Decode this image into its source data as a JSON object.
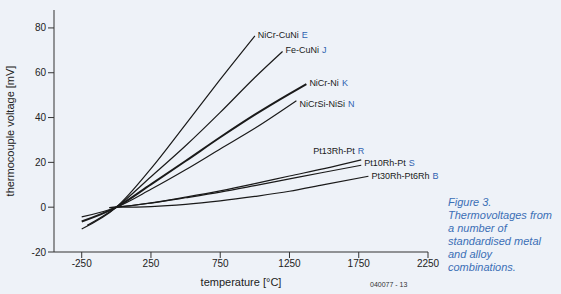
{
  "chart_data": {
    "type": "line",
    "caption": "Figure 3. Thermovoltages from a number of standardised metal and alloy combinations.",
    "figure_id": "040077 - 13",
    "x_label": "temperature [°C]",
    "y_label": "thermocouple voltage [mV]",
    "xlim": [
      -450,
      2250
    ],
    "xticks": [
      -250,
      250,
      750,
      1250,
      1750,
      2250
    ],
    "ylim": [
      -20,
      88
    ],
    "yticks": [
      -20,
      0,
      20,
      40,
      60,
      80
    ],
    "grid": false,
    "series": [
      {
        "name": "NiCr-CuNi E",
        "color": "#1a1a1a",
        "x": [
          -250,
          0,
          250,
          500,
          750,
          1000
        ],
        "values": [
          -9.7,
          0,
          17.2,
          37,
          57,
          76.4
        ]
      },
      {
        "name": "Fe-CuNi J",
        "color": "#1a1a1a",
        "x": [
          -210,
          0,
          250,
          500,
          750,
          1000,
          1200
        ],
        "values": [
          -8.1,
          0,
          13.6,
          27.4,
          42.3,
          57.9,
          69.5
        ]
      },
      {
        "name": "NiCr-Ni K",
        "color": "#1a1a1a",
        "x": [
          -250,
          0,
          250,
          500,
          750,
          1000,
          1250,
          1372
        ],
        "values": [
          -6.4,
          0,
          10.2,
          20.6,
          31.2,
          41.3,
          50.6,
          54.9
        ]
      },
      {
        "name": "NiCrSi-NiSi N",
        "color": "#1a1a1a",
        "x": [
          -250,
          0,
          250,
          500,
          750,
          1000,
          1300
        ],
        "values": [
          -4.3,
          0,
          8.0,
          16.7,
          26.0,
          35.2,
          47.5
        ]
      },
      {
        "name": "Pt13Rh-Pt R",
        "color": "#1a1a1a",
        "x": [
          -50,
          0,
          250,
          500,
          750,
          1000,
          1250,
          1500,
          1768
        ],
        "values": [
          -0.23,
          0,
          1.9,
          4.5,
          7.3,
          10.5,
          13.9,
          17.2,
          21.1
        ]
      },
      {
        "name": "Pt10Rh-Pt S",
        "color": "#1a1a1a",
        "x": [
          -50,
          0,
          250,
          500,
          750,
          1000,
          1250,
          1500,
          1768
        ],
        "values": [
          -0.24,
          0,
          1.85,
          4.2,
          6.7,
          9.6,
          12.6,
          15.6,
          18.7
        ]
      },
      {
        "name": "Pt30Rh-Pt6Rh B",
        "color": "#1a1a1a",
        "x": [
          0,
          250,
          500,
          750,
          1000,
          1250,
          1500,
          1820
        ],
        "values": [
          0,
          0.29,
          1.24,
          2.8,
          4.8,
          7.1,
          10.1,
          13.8
        ]
      }
    ]
  }
}
